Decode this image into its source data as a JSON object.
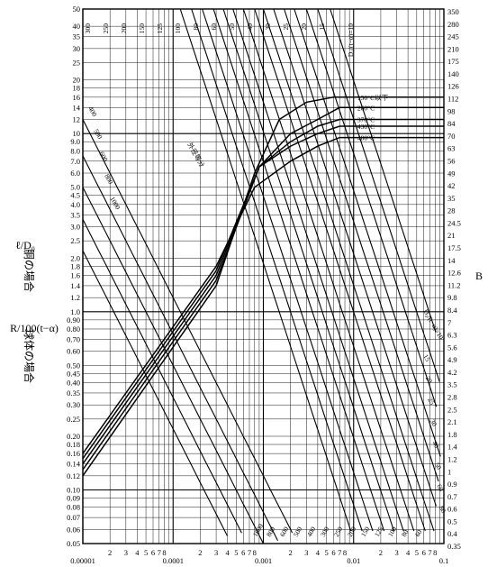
{
  "chart_data": {
    "type": "line",
    "title": "",
    "xlabel": "",
    "xscale": "log",
    "yscale": "log",
    "xlim": [
      1e-05,
      0.1
    ],
    "ylim": [
      0.05,
      50
    ],
    "x_tick_labels": [
      "0.00001",
      "2",
      "3",
      "4",
      "5",
      "6",
      "7",
      "8",
      "0.0001",
      "2",
      "3",
      "4",
      "5",
      "6",
      "7",
      "8",
      "0.001",
      "2",
      "3",
      "4",
      "5",
      "6",
      "7",
      "8",
      "0.01",
      "2",
      "3",
      "4",
      "5",
      "6",
      "7",
      "8",
      "0.1"
    ],
    "y_tick_labels": [
      "0.05",
      "0.06",
      "0.07",
      "0.08",
      "0.09",
      "0.10",
      "0.12",
      "0.14",
      "0.16",
      "0.18",
      "0.20",
      "0.25",
      "0.30",
      "0.35",
      "0.40",
      "0.45",
      "0.50",
      "0.60",
      "0.70",
      "0.80",
      "0.90",
      "1.0",
      "1.2",
      "1.4",
      "1.6",
      "1.8",
      "2.0",
      "2.5",
      "3.0",
      "3.5",
      "4.0",
      "4.5",
      "5.0",
      "6.0",
      "7.0",
      "8.0",
      "9.0",
      "10",
      "12",
      "14",
      "16",
      "18",
      "20",
      "25",
      "30",
      "35",
      "40",
      "50"
    ],
    "left_axis_label_top": "ℓ/D₀",
    "left_axis_label_top_paren": "胴の場合",
    "left_axis_label_mid": "R/100(t−α)",
    "left_axis_label_bottom_paren": "球体の場合",
    "right_axis_label": "B",
    "right_tick_labels": [
      "350",
      "280",
      "245",
      "210",
      "175",
      "140",
      "126",
      "112",
      "98",
      "84",
      "70",
      "63",
      "56",
      "49",
      "42",
      "35",
      "28",
      "24.5",
      "21",
      "17.5",
      "14",
      "12.6",
      "11.2",
      "9.8",
      "8.4",
      "7",
      "6.3",
      "5.6",
      "4.9",
      "4.2",
      "3.5",
      "2.8",
      "2.5",
      "2.1",
      "1.8",
      "1.4",
      "1.2",
      "1",
      "0.9",
      "0.7",
      "0.6",
      "0.5",
      "0.4",
      "0.35"
    ],
    "d0_param_title_top": "D₀/(t−α)=10",
    "d0_param_title_right": "D₀/(t−α)=10",
    "d0_family_values_top": [
      "300",
      "250",
      "200",
      "150",
      "125",
      "100",
      "80",
      "60",
      "50",
      "40",
      "30",
      "25",
      "20",
      "15"
    ],
    "d0_family_values_left": [
      "400",
      "500",
      "600",
      "800",
      "1000"
    ],
    "d0_family_values_bottom": [
      "1000",
      "800",
      "600",
      "500",
      "400",
      "300",
      "250",
      "200",
      "150",
      "125",
      "100",
      "80",
      "60"
    ],
    "d0_family_values_right": [
      "15",
      "20",
      "25",
      "30",
      "40",
      "50",
      "60",
      "80"
    ],
    "diagonal_annotation": "外径等分",
    "temperature_series": [
      {
        "name": "150°C以下",
        "curve": [
          [
            1e-05,
            0.12
          ],
          [
            0.0003,
            1.4
          ],
          [
            0.0008,
            6.0
          ],
          [
            0.0015,
            12.0
          ],
          [
            0.003,
            15.0
          ],
          [
            0.006,
            16.0
          ],
          [
            0.1,
            16.0
          ]
        ]
      },
      {
        "name": "260°C",
        "curve": [
          [
            1e-05,
            0.13
          ],
          [
            0.0003,
            1.5
          ],
          [
            0.0009,
            6.5
          ],
          [
            0.002,
            10.0
          ],
          [
            0.004,
            12.0
          ],
          [
            0.007,
            14.0
          ],
          [
            0.1,
            14.0
          ]
        ]
      },
      {
        "name": "370°C",
        "curve": [
          [
            1e-05,
            0.14
          ],
          [
            0.0003,
            1.6
          ],
          [
            0.0009,
            6.5
          ],
          [
            0.002,
            9.0
          ],
          [
            0.004,
            11.0
          ],
          [
            0.007,
            12.0
          ],
          [
            0.1,
            12.0
          ]
        ]
      },
      {
        "name": "430°C",
        "curve": [
          [
            1e-05,
            0.15
          ],
          [
            0.0003,
            1.7
          ],
          [
            0.0009,
            6.5
          ],
          [
            0.002,
            8.5
          ],
          [
            0.004,
            10.0
          ],
          [
            0.007,
            11.0
          ],
          [
            0.1,
            11.0
          ]
        ]
      },
      {
        "name": "480°C",
        "curve": [
          [
            1e-05,
            0.16
          ],
          [
            0.0003,
            1.8
          ],
          [
            0.0008,
            5.0
          ],
          [
            0.002,
            7.0
          ],
          [
            0.004,
            8.5
          ],
          [
            0.007,
            9.5
          ],
          [
            0.1,
            9.5
          ]
        ]
      }
    ],
    "grid": true,
    "legend": "top-right"
  }
}
